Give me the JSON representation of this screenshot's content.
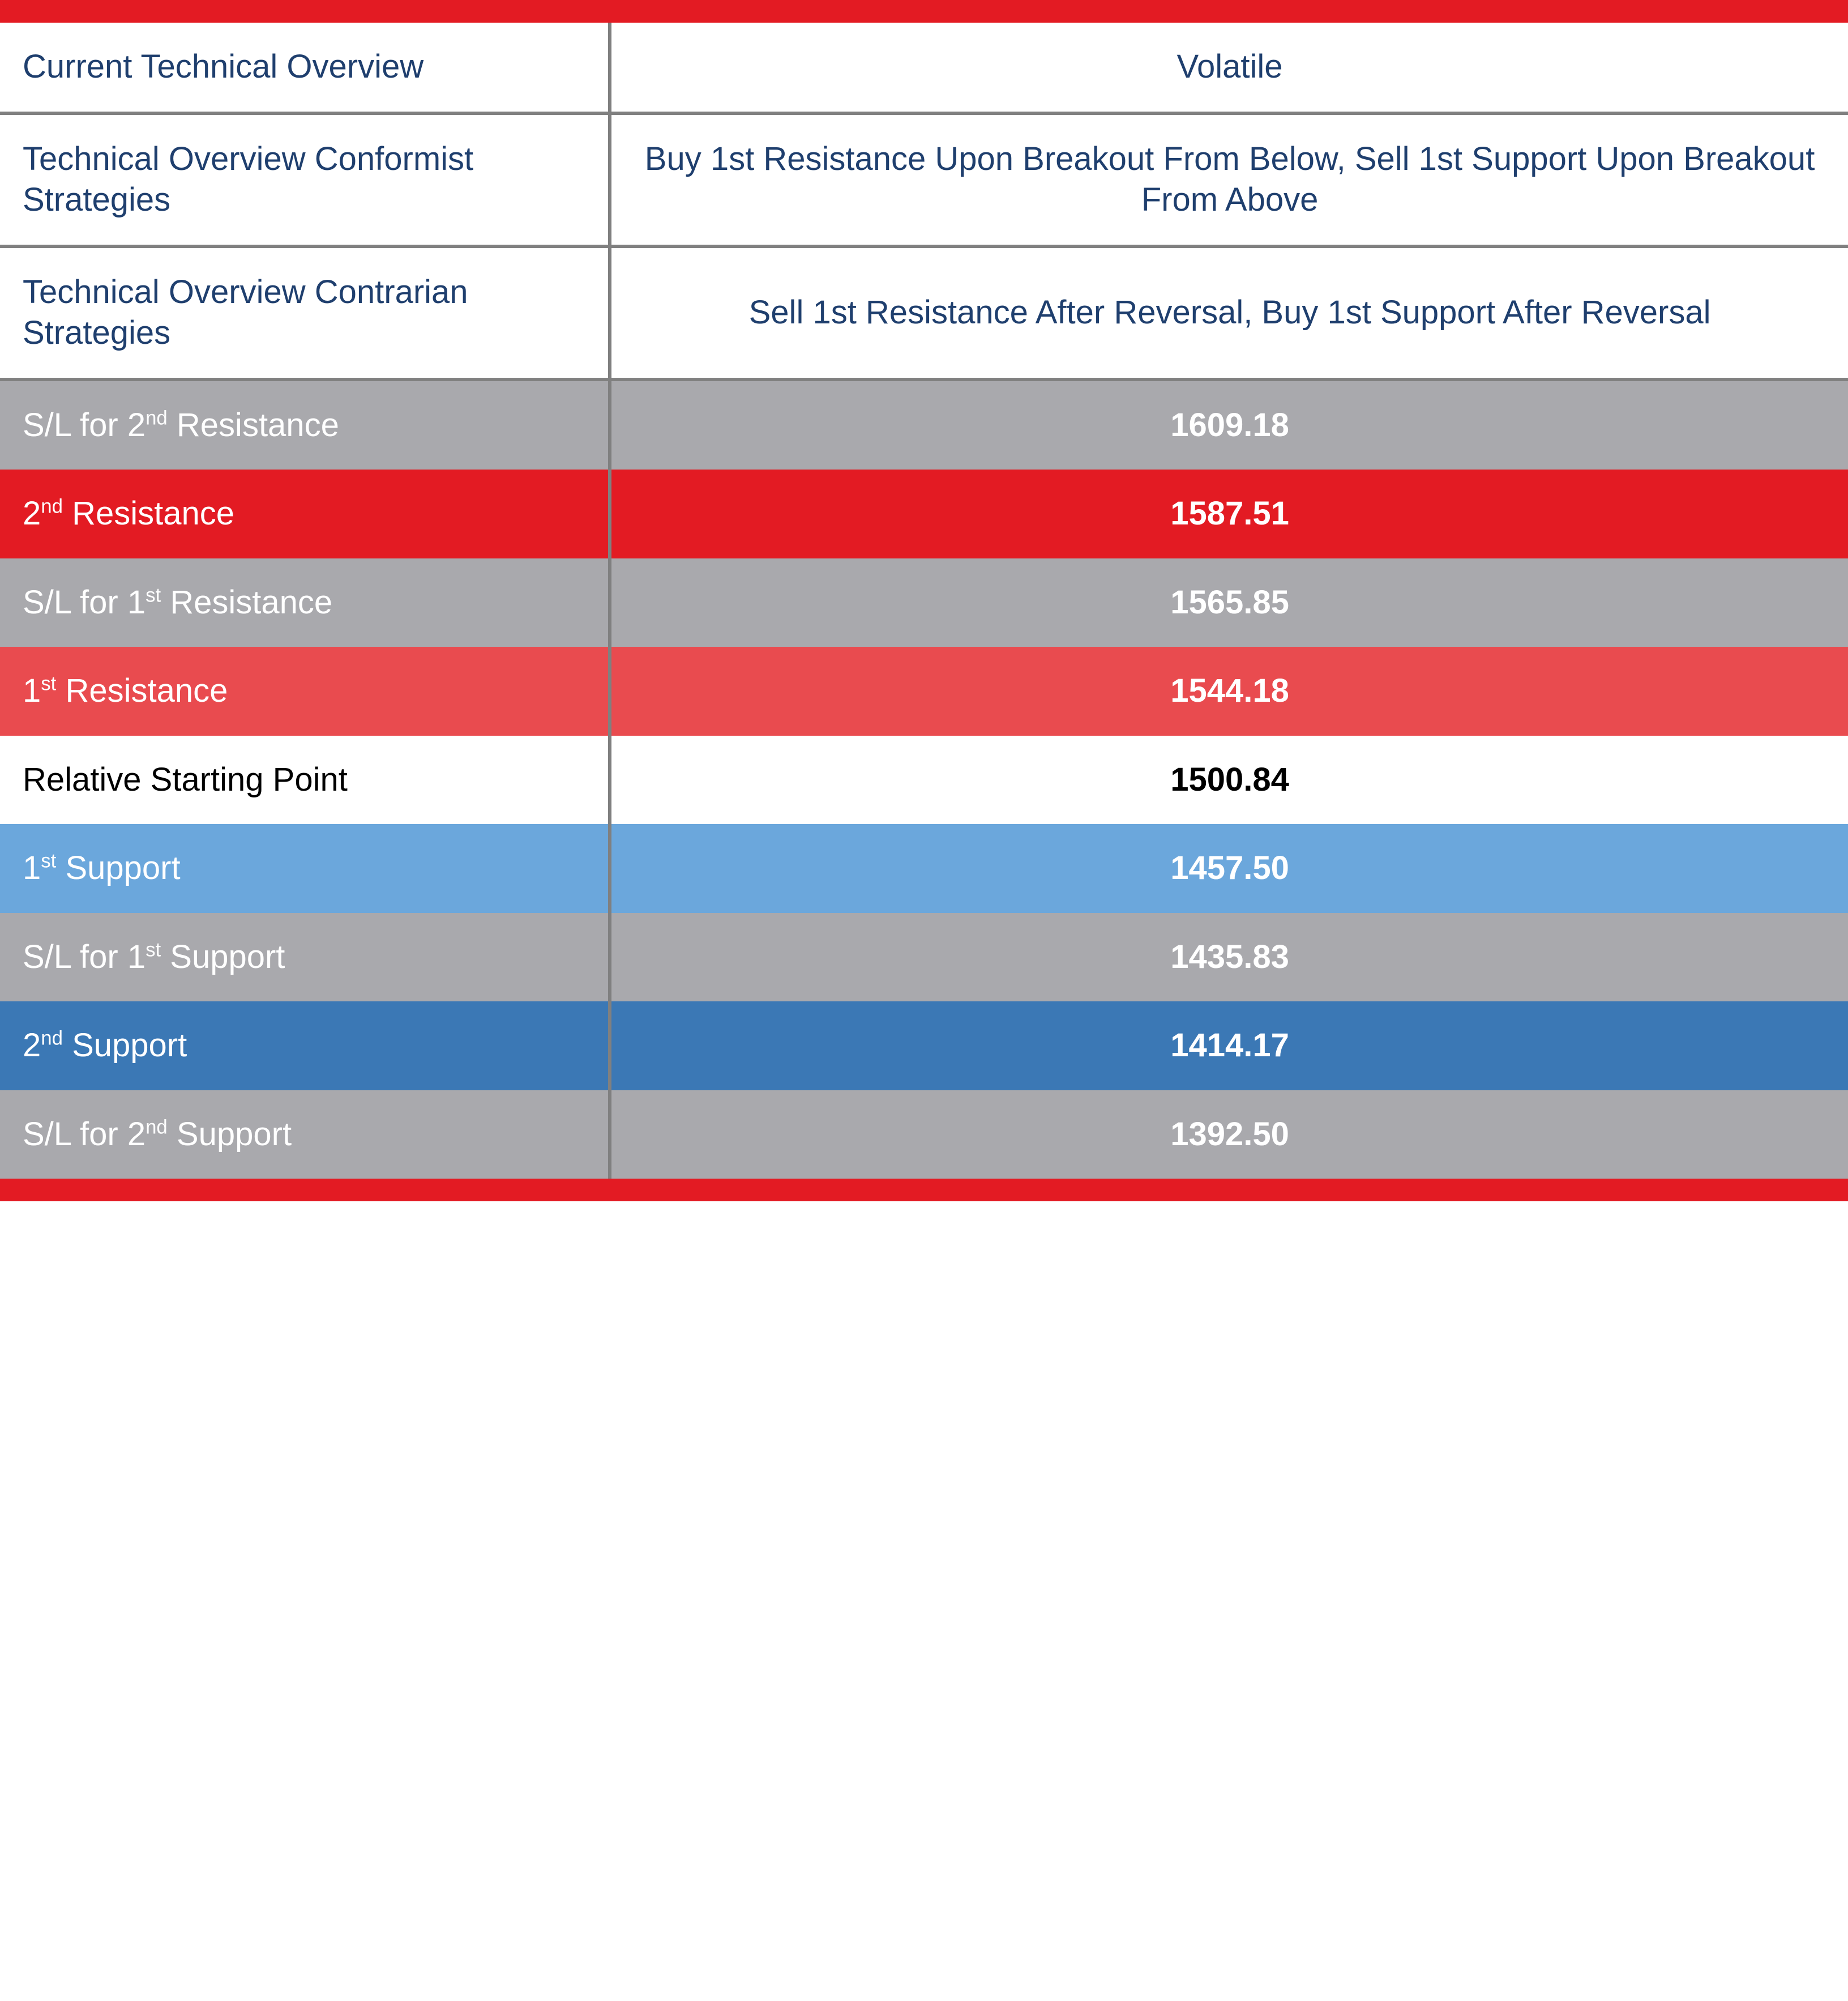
{
  "colors": {
    "accent_red": "#e31b23",
    "navy_text": "#1f3f6e",
    "gray_row": "#a9a9ad",
    "red_row": "#e31b23",
    "red_row_light": "#e94b4f",
    "blue_row": "#3b78b5",
    "blue_row_light": "#6ba7dc",
    "white": "#ffffff",
    "mid_row_bg": "#ffffff",
    "divider": "#808080"
  },
  "overview": {
    "rows": [
      {
        "label": "Current Technical Overview",
        "value": "Volatile"
      },
      {
        "label": "Technical Overview Conformist Strategies",
        "value": "Buy 1st Resistance Upon Breakout From Below, Sell 1st Support Upon Breakout From Above"
      },
      {
        "label": "Technical Overview Contrarian Strategies",
        "value": "Sell 1st Resistance After Reversal, Buy 1st Support After Reversal"
      }
    ]
  },
  "levels": [
    {
      "label_pre": "S/L for 2",
      "ord": "nd",
      "label_post": " Resistance",
      "value": "1609.18",
      "bg": "#a9a9ad",
      "fg": "#ffffff"
    },
    {
      "label_pre": "2",
      "ord": "nd",
      "label_post": " Resistance",
      "value": "1587.51",
      "bg": "#e31b23",
      "fg": "#ffffff"
    },
    {
      "label_pre": "S/L for 1",
      "ord": "st",
      "label_post": " Resistance",
      "value": "1565.85",
      "bg": "#a9a9ad",
      "fg": "#ffffff"
    },
    {
      "label_pre": "1",
      "ord": "st",
      "label_post": " Resistance",
      "value": "1544.18",
      "bg": "#e94b4f",
      "fg": "#ffffff"
    },
    {
      "label_pre": "Relative Starting Point",
      "ord": "",
      "label_post": "",
      "value": "1500.84",
      "bg": "#ffffff",
      "fg": "#000000",
      "mid": true
    },
    {
      "label_pre": "1",
      "ord": "st",
      "label_post": " Support",
      "value": "1457.50",
      "bg": "#6ba7dc",
      "fg": "#ffffff"
    },
    {
      "label_pre": "S/L for 1",
      "ord": "st",
      "label_post": " Support",
      "value": "1435.83",
      "bg": "#a9a9ad",
      "fg": "#ffffff"
    },
    {
      "label_pre": "2",
      "ord": "nd",
      "label_post": " Support",
      "value": "1414.17",
      "bg": "#3b78b5",
      "fg": "#ffffff"
    },
    {
      "label_pre": "S/L for 2",
      "ord": "nd",
      "label_post": " Support",
      "value": "1392.50",
      "bg": "#a9a9ad",
      "fg": "#ffffff"
    }
  ]
}
